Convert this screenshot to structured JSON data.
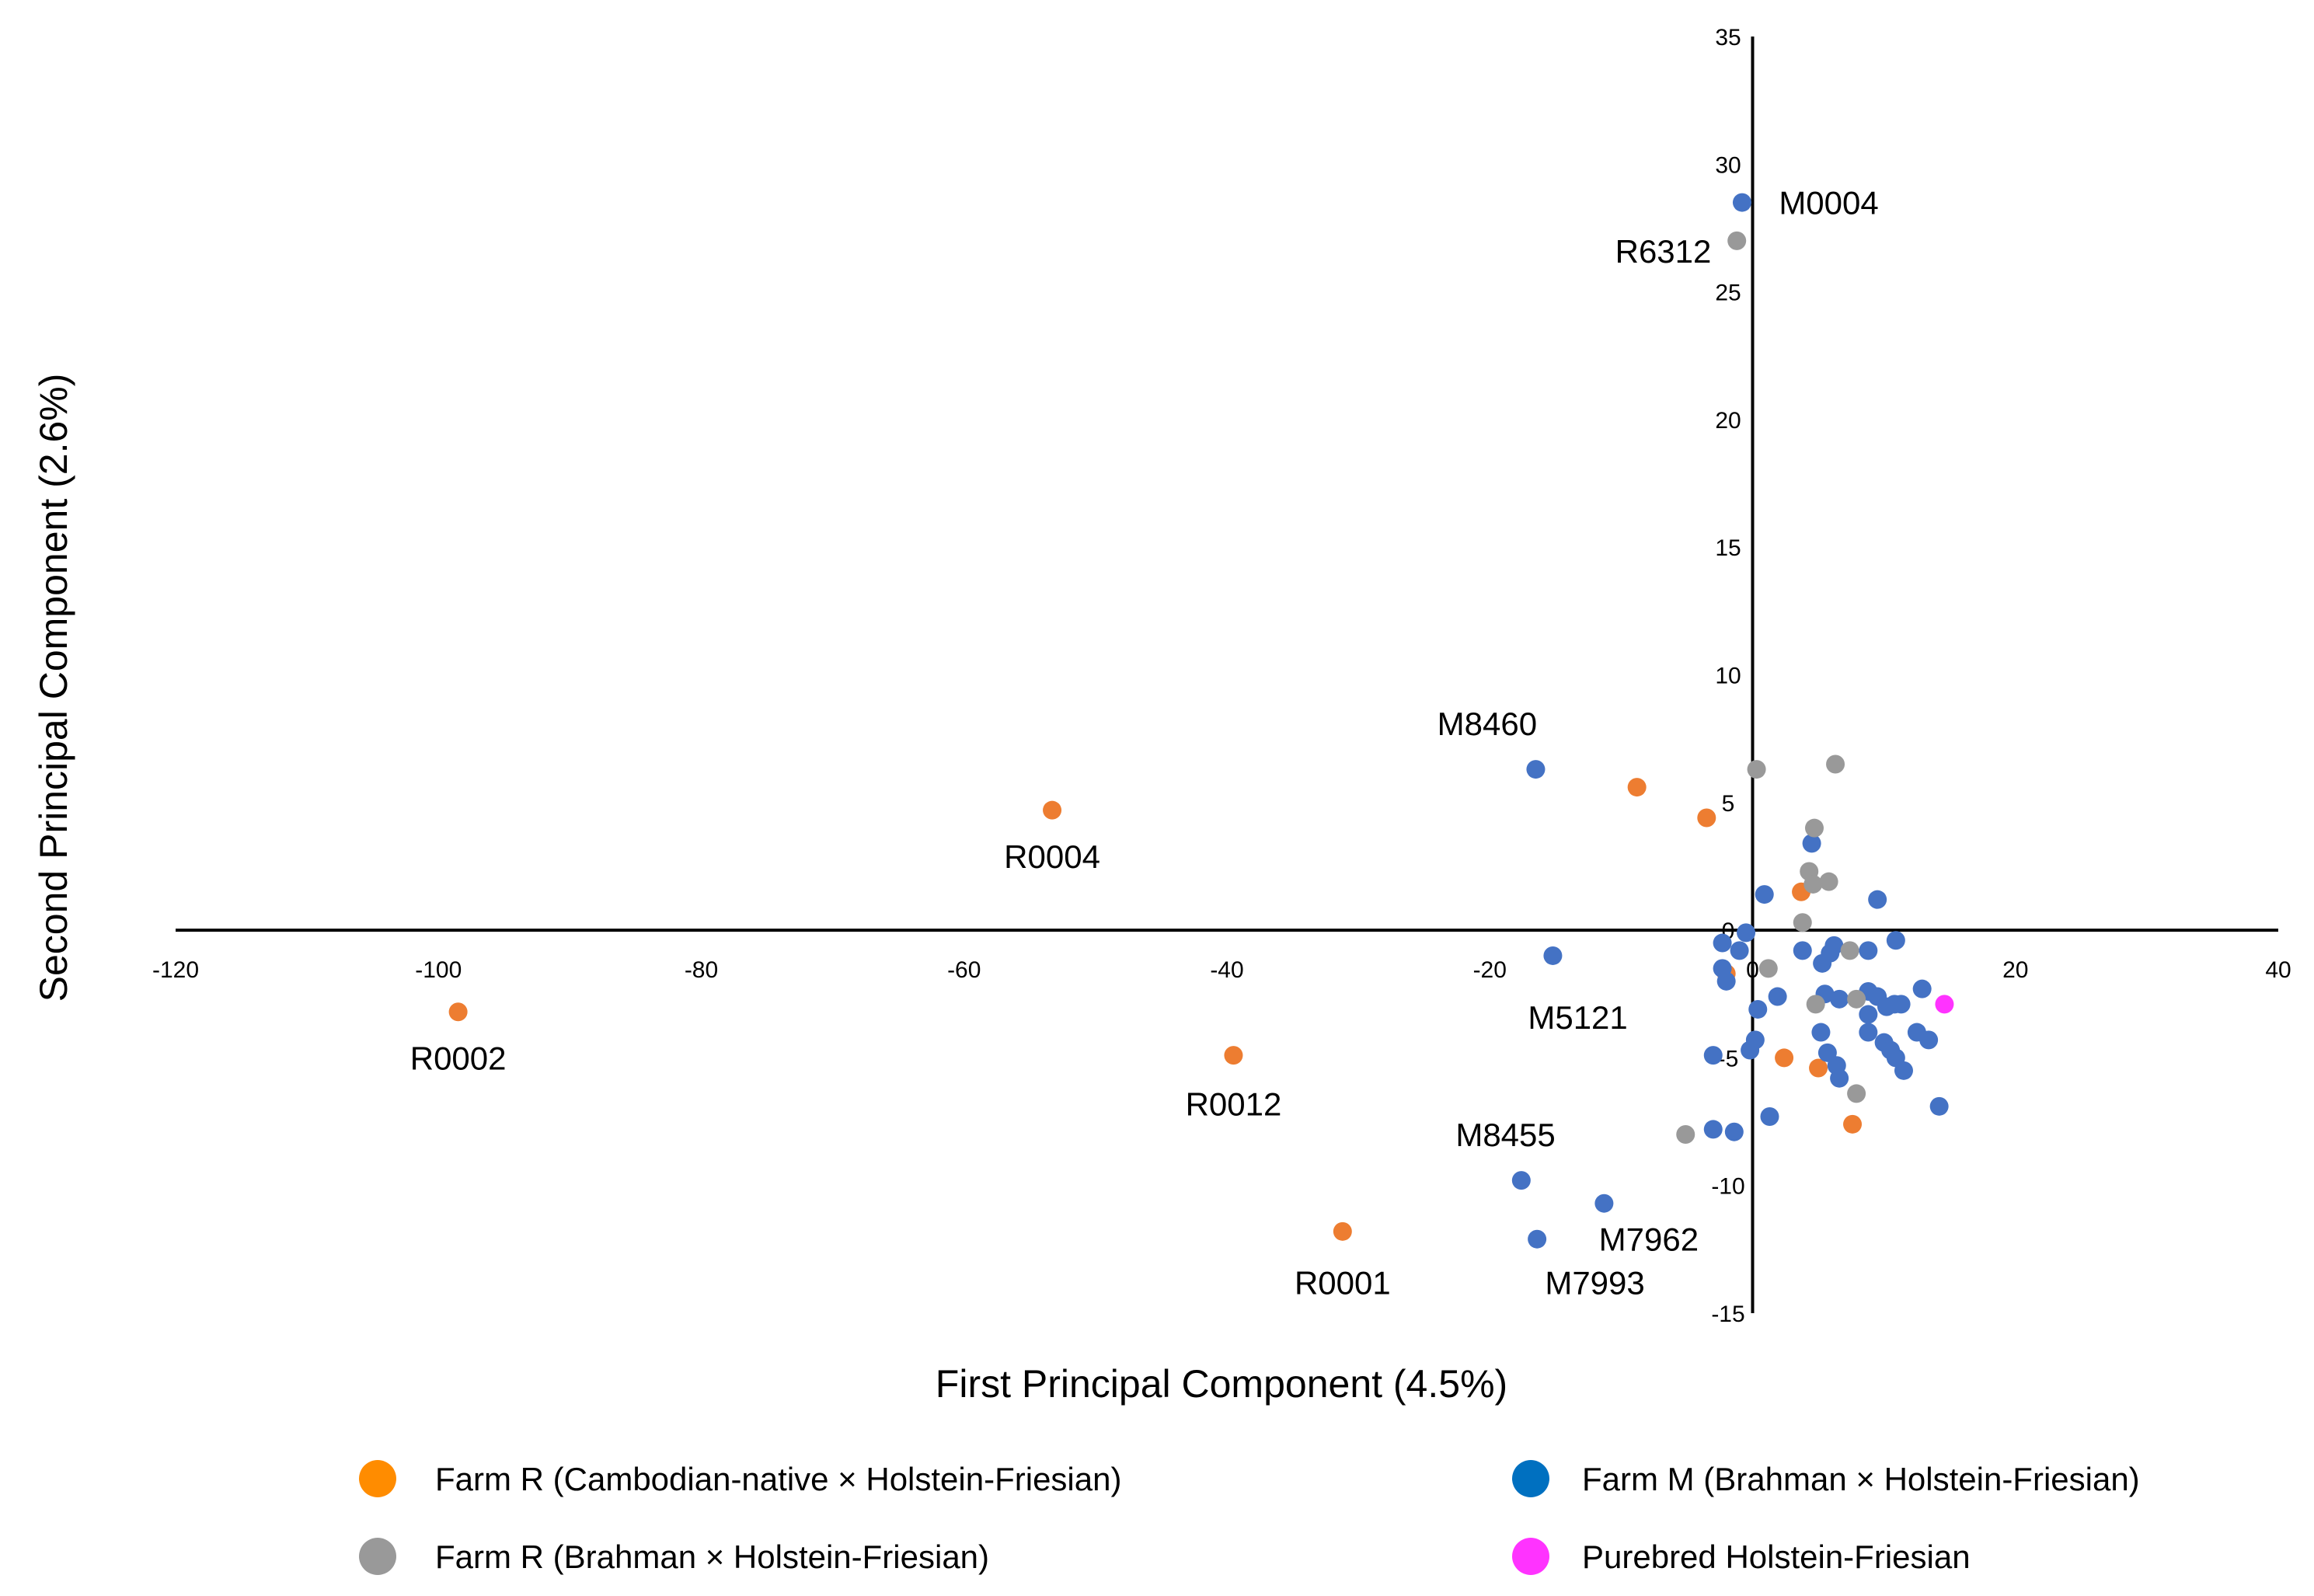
{
  "chart_data": {
    "type": "scatter",
    "title": "",
    "xlabel": "First Principal Component (4.5%)",
    "ylabel": "Second Principal Component (2.6%)",
    "xlim": [
      -120,
      40
    ],
    "ylim": [
      -15,
      35
    ],
    "xticks": [
      -120,
      -100,
      -80,
      -60,
      -40,
      -20,
      0,
      20,
      40
    ],
    "yticks": [
      -15,
      -10,
      -5,
      0,
      5,
      10,
      15,
      20,
      25,
      30,
      35
    ],
    "colors": {
      "orange_swatch": "#ff8c00",
      "orange_point": "#ed7d31",
      "blue_swatch": "#0070c0",
      "blue_point": "#4472c4",
      "grey": "#999999",
      "magenta": "#ff33ff",
      "axis": "#000000"
    },
    "legend": [
      {
        "label": "Farm R (Cambodian-native × Holstein-Friesian)",
        "series": "farm_r_native",
        "swatch": "#ff8c00"
      },
      {
        "label": "Farm M (Brahman × Holstein-Friesian)",
        "series": "farm_m",
        "swatch": "#0070c0"
      },
      {
        "label": "Farm R (Brahman × Holstein-Friesian)",
        "series": "farm_r_brahman",
        "swatch": "#999999"
      },
      {
        "label": "Purebred Holstein-Friesian",
        "series": "purebred",
        "swatch": "#ff33ff"
      }
    ],
    "series": [
      {
        "name": "Farm R (Cambodian-native × Holstein-Friesian)",
        "key": "farm_r_native",
        "color": "#ed7d31",
        "points": [
          [
            -98.5,
            -3.2
          ],
          [
            -53.3,
            4.7
          ],
          [
            -39.5,
            -4.9
          ],
          [
            -31.2,
            -11.8
          ],
          [
            -8.8,
            5.6
          ],
          [
            -3.5,
            4.4
          ],
          [
            -2.0,
            -1.7
          ],
          [
            3.7,
            1.5
          ],
          [
            2.4,
            -5.0
          ],
          [
            5.0,
            -5.4
          ],
          [
            7.6,
            -7.6
          ]
        ]
      },
      {
        "name": "Farm M (Brahman × Holstein-Friesian)",
        "key": "farm_m",
        "color": "#4472c4",
        "points": [
          [
            -0.8,
            28.5
          ],
          [
            -16.5,
            6.3
          ],
          [
            -15.2,
            -1.0
          ],
          [
            -17.6,
            -9.8
          ],
          [
            -11.3,
            -10.7
          ],
          [
            -16.4,
            -12.1
          ],
          [
            0.9,
            1.4
          ],
          [
            4.5,
            3.4
          ],
          [
            9.5,
            1.2
          ],
          [
            -0.5,
            -0.1
          ],
          [
            -2.3,
            -0.5
          ],
          [
            -2.3,
            -1.5
          ],
          [
            -2.0,
            -2.0
          ],
          [
            -1.0,
            -0.8
          ],
          [
            0.4,
            -3.1
          ],
          [
            1.9,
            -2.6
          ],
          [
            0.2,
            -4.3
          ],
          [
            -0.2,
            -4.7
          ],
          [
            -3.0,
            -4.9
          ],
          [
            -3.0,
            -7.8
          ],
          [
            -1.4,
            -7.9
          ],
          [
            1.3,
            -7.3
          ],
          [
            3.8,
            -0.8
          ],
          [
            5.3,
            -1.3
          ],
          [
            6.2,
            -0.6
          ],
          [
            5.9,
            -0.9
          ],
          [
            8.8,
            -0.8
          ],
          [
            10.9,
            -0.4
          ],
          [
            5.5,
            -2.5
          ],
          [
            6.6,
            -2.7
          ],
          [
            8.8,
            -2.4
          ],
          [
            9.5,
            -2.6
          ],
          [
            10.8,
            -2.9
          ],
          [
            10.2,
            -3.0
          ],
          [
            11.3,
            -2.9
          ],
          [
            12.9,
            -2.3
          ],
          [
            8.8,
            -3.3
          ],
          [
            5.2,
            -4.0
          ],
          [
            8.8,
            -4.0
          ],
          [
            10.0,
            -4.4
          ],
          [
            10.5,
            -4.7
          ],
          [
            10.9,
            -5.0
          ],
          [
            11.5,
            -5.5
          ],
          [
            12.5,
            -4.0
          ],
          [
            13.4,
            -4.3
          ],
          [
            5.7,
            -4.8
          ],
          [
            6.4,
            -5.3
          ],
          [
            6.6,
            -5.8
          ],
          [
            14.2,
            -6.9
          ]
        ]
      },
      {
        "name": "Farm R (Brahman × Holstein-Friesian)",
        "key": "farm_r_brahman",
        "color": "#999999",
        "points": [
          [
            -1.2,
            27.0
          ],
          [
            0.3,
            6.3
          ],
          [
            6.3,
            6.5
          ],
          [
            4.7,
            4.0
          ],
          [
            4.3,
            2.3
          ],
          [
            5.8,
            1.9
          ],
          [
            4.6,
            1.8
          ],
          [
            3.8,
            0.3
          ],
          [
            1.2,
            -1.5
          ],
          [
            7.4,
            -0.8
          ],
          [
            4.8,
            -2.9
          ],
          [
            7.9,
            -2.7
          ],
          [
            7.9,
            -6.4
          ],
          [
            -5.1,
            -8.0
          ]
        ]
      },
      {
        "name": "Purebred Holstein-Friesian",
        "key": "purebred",
        "color": "#ff33ff",
        "points": [
          [
            14.6,
            -2.9
          ]
        ]
      }
    ],
    "annotations": [
      {
        "text": "M0004",
        "x": 2.0,
        "y": 28.5,
        "anchor": "start"
      },
      {
        "text": "R6312",
        "x": -6.8,
        "y": 26.6,
        "anchor": "middle"
      },
      {
        "text": "M8460",
        "x": -20.2,
        "y": 8.1,
        "anchor": "middle"
      },
      {
        "text": "R0004",
        "x": -53.3,
        "y": 2.9,
        "anchor": "middle"
      },
      {
        "text": "M5121",
        "x": -13.3,
        "y": -3.4,
        "anchor": "middle"
      },
      {
        "text": "R0002",
        "x": -98.5,
        "y": -5.0,
        "anchor": "middle"
      },
      {
        "text": "R0012",
        "x": -39.5,
        "y": -6.8,
        "anchor": "middle"
      },
      {
        "text": "M8455",
        "x": -18.8,
        "y": -8.0,
        "anchor": "middle"
      },
      {
        "text": "M7962",
        "x": -7.9,
        "y": -12.1,
        "anchor": "middle"
      },
      {
        "text": "M7993",
        "x": -12.0,
        "y": -13.8,
        "anchor": "middle"
      },
      {
        "text": "R0001",
        "x": -31.2,
        "y": -13.8,
        "anchor": "middle"
      }
    ]
  }
}
